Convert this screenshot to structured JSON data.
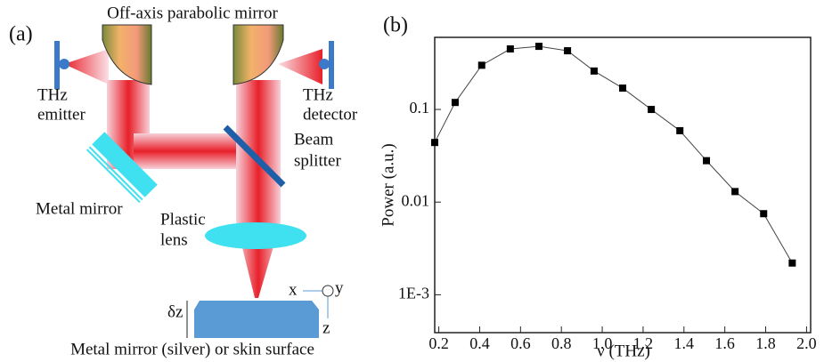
{
  "diagram": {
    "panel_label": "(a)",
    "title": "Off-axis parabolic mirror",
    "labels": [
      "THz",
      "emitter",
      "THz",
      "detector",
      "Beam",
      "splitter",
      "Metal mirror",
      "Plastic",
      "lens",
      "δz",
      "x",
      "y",
      "z",
      "Metal mirror (silver) or skin surface"
    ]
  },
  "chart_data": {
    "type": "line",
    "panel_label": "(b)",
    "x_label": "ν (THz)",
    "y_label": "Power (a.u.)",
    "log_y": true,
    "color": "#444444",
    "x": [
      0.18,
      0.28,
      0.41,
      0.55,
      0.69,
      0.83,
      0.96,
      1.1,
      1.24,
      1.38,
      1.51,
      1.65,
      1.79,
      1.93
    ],
    "values": [
      0.044,
      0.119,
      0.3,
      0.45,
      0.48,
      0.43,
      0.26,
      0.17,
      0.1,
      0.059,
      0.028,
      0.013,
      0.0075,
      0.0022
    ],
    "xlim": [
      0.18,
      2.02
    ],
    "ylim": [
      0.00039,
      0.6
    ],
    "xticks": [
      0.2,
      0.4,
      0.6,
      0.8,
      {
        "value": 1,
        "label": "1.0"
      },
      1.2,
      1.4,
      1.6,
      1.8,
      {
        "value": 2,
        "label": "2.0"
      }
    ],
    "yticks": [
      {
        "value": 0.001,
        "label": "1E-3"
      },
      0.01,
      0.1
    ]
  }
}
